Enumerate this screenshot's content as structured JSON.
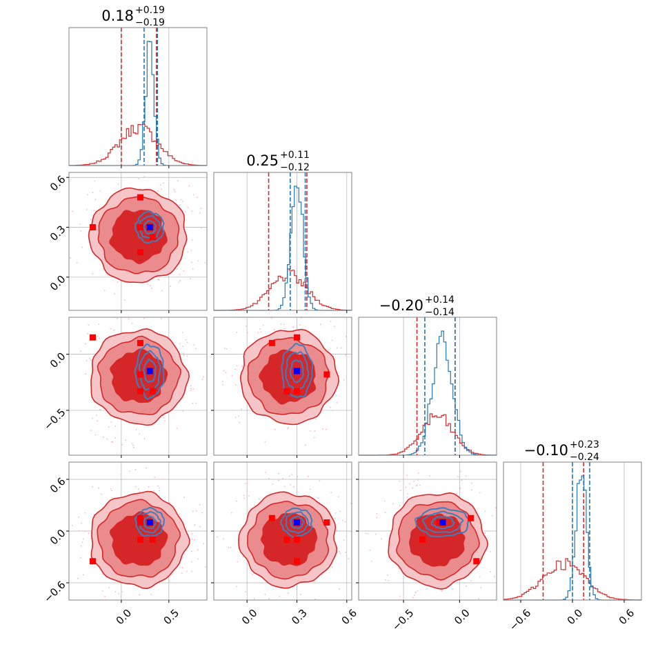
{
  "chart_data": {
    "type": "corner",
    "parameters": 4,
    "colors": {
      "red": "#d62728",
      "blue": "#1f77b4",
      "marker_red": "#ff0000",
      "marker_blue": "#0000ff",
      "grid": "#b0b0b0"
    },
    "titles": [
      {
        "value": "0.18",
        "plus": "+0.19",
        "minus": "−0.19"
      },
      {
        "value": "0.25",
        "plus": "+0.11",
        "minus": "−0.12"
      },
      {
        "value": "−0.20",
        "plus": "+0.14",
        "minus": "−0.14"
      },
      {
        "value": "−0.10",
        "plus": "+0.23",
        "minus": "−0.24"
      }
    ],
    "axis_ranges": [
      [
        -0.55,
        0.9
      ],
      [
        -0.2,
        0.63
      ],
      [
        -0.9,
        0.33
      ],
      [
        -0.8,
        0.8
      ]
    ],
    "ticks": [
      {
        "values": [
          0.0,
          0.5
        ],
        "labels": [
          "0.0",
          "0.5"
        ]
      },
      {
        "values": [
          0.0,
          0.3,
          0.6
        ],
        "labels": [
          "0.0",
          "0.3",
          "0.6"
        ]
      },
      {
        "values": [
          -0.5,
          0.0
        ],
        "labels": [
          "−0.5",
          "0.0"
        ]
      },
      {
        "values": [
          -0.6,
          0.0,
          0.6
        ],
        "labels": [
          "−0.6",
          "0.0",
          "0.6"
        ]
      }
    ],
    "quantiles": {
      "red": [
        [
          0.0,
          0.37
        ],
        [
          0.13,
          0.36
        ],
        [
          -0.38,
          -0.04
        ],
        [
          -0.34,
          0.13
        ]
      ],
      "blue": [
        [
          0.24,
          0.38
        ],
        [
          0.26,
          0.35
        ],
        [
          -0.31,
          -0.04
        ],
        [
          0.0,
          0.2
        ]
      ]
    },
    "truth_points": [
      {
        "name": "red-a",
        "values": [
          -0.3,
          0.3,
          0.15,
          -0.35
        ]
      },
      {
        "name": "red-b",
        "values": [
          0.2,
          0.48,
          -0.18,
          0.1
        ]
      },
      {
        "name": "red-c",
        "values": [
          0.2,
          0.15,
          0.1,
          0.15
        ]
      },
      {
        "name": "red-d",
        "values": [
          0.33,
          0.24,
          -0.33,
          -0.1
        ]
      },
      {
        "name": "red-e",
        "values": [
          0.2,
          0.3,
          -0.33,
          -0.1
        ]
      }
    ],
    "truth_blue": [
      0.3,
      0.3,
      -0.15,
      0.1
    ],
    "hist_red": [
      {
        "mean": 0.18,
        "sd": 0.2
      },
      {
        "mean": 0.25,
        "sd": 0.11
      },
      {
        "mean": -0.2,
        "sd": 0.14
      },
      {
        "mean": -0.1,
        "sd": 0.24
      }
    ],
    "hist_blue": [
      {
        "mean": 0.3,
        "sd": 0.045
      },
      {
        "mean": 0.3,
        "sd": 0.035
      },
      {
        "mean": -0.15,
        "sd": 0.09
      },
      {
        "mean": 0.1,
        "sd": 0.06
      }
    ]
  }
}
